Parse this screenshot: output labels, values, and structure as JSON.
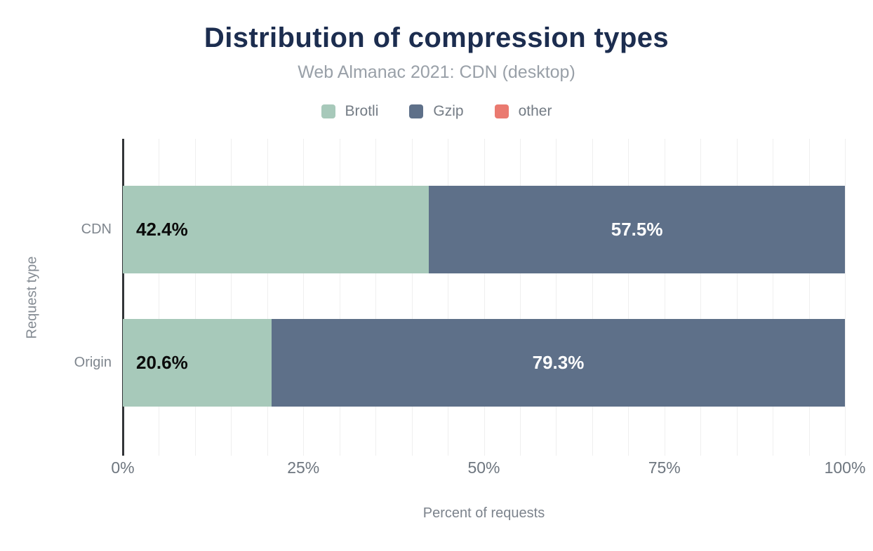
{
  "chart_data": {
    "type": "bar",
    "variant": "horizontal-stacked",
    "title": "Distribution of compression types",
    "subtitle": "Web Almanac 2021: CDN (desktop)",
    "xlabel": "Percent of requests",
    "ylabel": "Request type",
    "categories": [
      "CDN",
      "Origin"
    ],
    "series": [
      {
        "name": "Brotli",
        "color": "#a7c9ba",
        "values": [
          42.4,
          20.6
        ],
        "labels": [
          "42.4%",
          "20.6%"
        ],
        "label_color": "#0b0b0b",
        "label_align": "left"
      },
      {
        "name": "Gzip",
        "color": "#5e7089",
        "values": [
          57.5,
          79.3
        ],
        "labels": [
          "57.5%",
          "79.3%"
        ],
        "label_color": "#ffffff",
        "label_align": "center"
      },
      {
        "name": "other",
        "color": "#ea7a70",
        "values": [
          0.1,
          0.1
        ],
        "labels": [
          "",
          ""
        ],
        "label_color": "#0b0b0b",
        "label_align": "center"
      }
    ],
    "x_ticks": [
      {
        "value": 0,
        "label": "0%"
      },
      {
        "value": 25,
        "label": "25%"
      },
      {
        "value": 50,
        "label": "50%"
      },
      {
        "value": 75,
        "label": "75%"
      },
      {
        "value": 100,
        "label": "100%"
      }
    ],
    "xlim": [
      0,
      100
    ],
    "gridline_step_percent": 5,
    "legend_position": "top",
    "grid": "vertical-on",
    "colors": {
      "background": "#ffffff",
      "title_text": "#1c2d4f",
      "subtitle_text": "#99a0a8",
      "legend_text": "#747c85",
      "tick_text": "#6e767f",
      "category_text": "#7f868e",
      "axis_title_text": "#7c838c",
      "axis_line": "#333538",
      "gridline": "#efefef"
    }
  }
}
